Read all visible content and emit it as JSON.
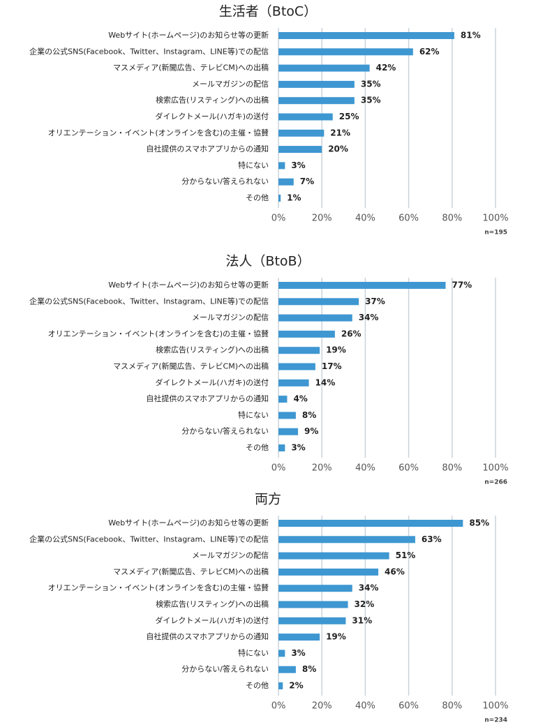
{
  "chart_data": [
    {
      "type": "bar",
      "orientation": "horizontal",
      "title": "生活者（BtoC）",
      "note": "n=195",
      "color": "#3e97d1",
      "grid": true,
      "categories": [
        "Webサイト(ホームページ)のお知らせ等の更新",
        "企業の公式SNS(Facebook、Twitter、Instagram、LINE等)での配信",
        "マスメディア(新聞広告、テレビCM)への出稿",
        "メールマガジンの配信",
        "検索広告(リスティング)への出稿",
        "ダイレクトメール(ハガキ)の送付",
        "オリエンテーション・イベント(オンラインを含む)の主催・協賛",
        "自社提供のスマホアプリからの通知",
        "特にない",
        "分からない/答えられない",
        "その他"
      ],
      "values": [
        81,
        62,
        42,
        35,
        35,
        25,
        21,
        20,
        3,
        7,
        1
      ],
      "value_labels": [
        "81%",
        "62%",
        "42%",
        "35%",
        "35%",
        "25%",
        "21%",
        "20%",
        "3%",
        "7%",
        "1%"
      ],
      "xlim": [
        0,
        100
      ],
      "xticks": [
        {
          "value": 0,
          "label": "0%"
        },
        {
          "value": 20,
          "label": "20%"
        },
        {
          "value": 40,
          "label": "40%"
        },
        {
          "value": 60,
          "label": "60%"
        },
        {
          "value": 80,
          "label": "80%"
        },
        {
          "value": 100,
          "label": "100%"
        }
      ]
    },
    {
      "type": "bar",
      "orientation": "horizontal",
      "title": "法人（BtoB）",
      "note": "n=266",
      "color": "#3e97d1",
      "grid": true,
      "categories": [
        "Webサイト(ホームページ)のお知らせ等の更新",
        "企業の公式SNS(Facebook、Twitter、Instagram、LINE等)での配信",
        "メールマガジンの配信",
        "オリエンテーション・イベント(オンラインを含む)の主催・協賛",
        "検索広告(リスティング)への出稿",
        "マスメディア(新聞広告、テレビCM)への出稿",
        "ダイレクトメール(ハガキ)の送付",
        "自社提供のスマホアプリからの通知",
        "特にない",
        "分からない/答えられない",
        "その他"
      ],
      "values": [
        77,
        37,
        34,
        26,
        19,
        17,
        14,
        4,
        8,
        9,
        3
      ],
      "value_labels": [
        "77%",
        "37%",
        "34%",
        "26%",
        "19%",
        "17%",
        "14%",
        "4%",
        "8%",
        "9%",
        "3%"
      ],
      "xlim": [
        0,
        100
      ],
      "xticks": [
        {
          "value": 0,
          "label": "0%"
        },
        {
          "value": 20,
          "label": "20%"
        },
        {
          "value": 40,
          "label": "40%"
        },
        {
          "value": 60,
          "label": "60%"
        },
        {
          "value": 80,
          "label": "80%"
        },
        {
          "value": 100,
          "label": "100%"
        }
      ]
    },
    {
      "type": "bar",
      "orientation": "horizontal",
      "title": "両方",
      "note": "n=234",
      "color": "#3e97d1",
      "grid": true,
      "categories": [
        "Webサイト(ホームページ)のお知らせ等の更新",
        "企業の公式SNS(Facebook、Twitter、Instagram、LINE等)での配信",
        "メールマガジンの配信",
        "マスメディア(新聞広告、テレビCM)への出稿",
        "オリエンテーション・イベント(オンラインを含む)の主催・協賛",
        "検索広告(リスティング)への出稿",
        "ダイレクトメール(ハガキ)の送付",
        "自社提供のスマホアプリからの通知",
        "特にない",
        "分からない/答えられない",
        "その他"
      ],
      "values": [
        85,
        63,
        51,
        46,
        34,
        32,
        31,
        19,
        3,
        8,
        2
      ],
      "value_labels": [
        "85%",
        "63%",
        "51%",
        "46%",
        "34%",
        "32%",
        "31%",
        "19%",
        "3%",
        "8%",
        "2%"
      ],
      "xlim": [
        0,
        100
      ],
      "xticks": [
        {
          "value": 0,
          "label": "0%"
        },
        {
          "value": 20,
          "label": "20%"
        },
        {
          "value": 40,
          "label": "40%"
        },
        {
          "value": 60,
          "label": "60%"
        },
        {
          "value": 80,
          "label": "80%"
        },
        {
          "value": 100,
          "label": "100%"
        }
      ]
    }
  ]
}
